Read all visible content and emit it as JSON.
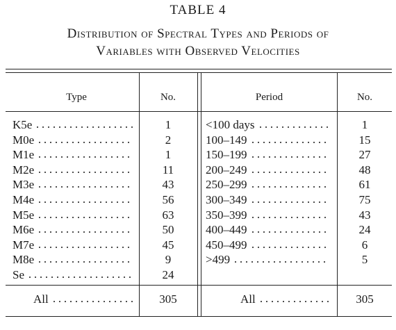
{
  "title": "TABLE 4",
  "caption": [
    "Distribution of Spectral Types and Periods of",
    "Variables with Observed Velocities"
  ],
  "table": {
    "header": [
      "Type",
      "No.",
      "Period",
      "No."
    ],
    "types": [
      [
        "K5e",
        1
      ],
      [
        "M0e",
        2
      ],
      [
        "M1e",
        1
      ],
      [
        "M2e",
        11
      ],
      [
        "M3e",
        43
      ],
      [
        "M4e",
        56
      ],
      [
        "M5e",
        63
      ],
      [
        "M6e",
        50
      ],
      [
        "M7e",
        45
      ],
      [
        "M8e",
        9
      ],
      [
        "Se",
        24
      ]
    ],
    "periods": [
      [
        "<100 days",
        1
      ],
      [
        "100–149",
        15
      ],
      [
        "150–199",
        27
      ],
      [
        "200–249",
        48
      ],
      [
        "250–299",
        61
      ],
      [
        "300–349",
        75
      ],
      [
        "350–399",
        43
      ],
      [
        "400–449",
        24
      ],
      [
        "450–499",
        6
      ],
      [
        ">499",
        5
      ]
    ],
    "total": {
      "type_label": "All",
      "type_count": 305,
      "period_label": "All",
      "period_count": 305
    }
  }
}
